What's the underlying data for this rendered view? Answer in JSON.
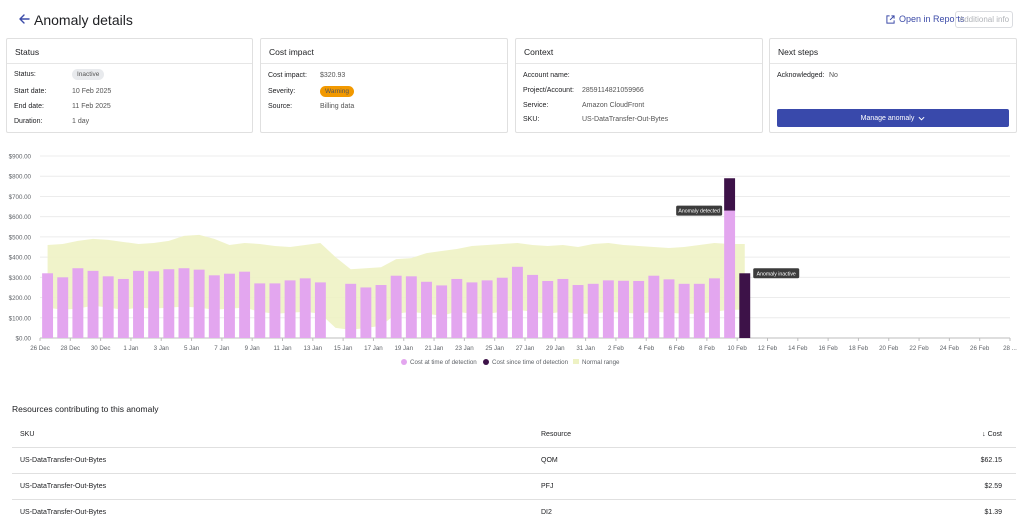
{
  "header": {
    "title": "Anomaly details",
    "open_reports": "Open in Reports",
    "additional_info": "Additional info"
  },
  "status_card": {
    "title": "Status",
    "status_label": "Status:",
    "status_value": "Inactive",
    "start_label": "Start date:",
    "start_value": "10 Feb 2025",
    "end_label": "End date:",
    "end_value": "11 Feb 2025",
    "duration_label": "Duration:",
    "duration_value": "1 day"
  },
  "cost_card": {
    "title": "Cost impact",
    "cost_label": "Cost impact:",
    "cost_value": "$320.93",
    "severity_label": "Severity:",
    "severity_value": "Warning",
    "source_label": "Source:",
    "source_value": "Billing data"
  },
  "context_card": {
    "title": "Context",
    "account_label": "Account name:",
    "account_value": "",
    "project_label": "Project/Account:",
    "project_value": "285911482105996​6",
    "service_label": "Service:",
    "service_value": "Amazon CloudFront",
    "sku_label": "SKU:",
    "sku_value": "US-DataTransfer-Out-Bytes"
  },
  "next_card": {
    "title": "Next steps",
    "ack_label": "Acknowledged:",
    "ack_value": "No",
    "manage_button": "Manage anomaly"
  },
  "chart_data": {
    "type": "bar",
    "y_ticks": [
      "$0.00",
      "$100.00",
      "$200.00",
      "$300.00",
      "$400.00",
      "$500.00",
      "$600.00",
      "$700.00",
      "$800.00",
      "$900.00"
    ],
    "ylim": [
      0,
      900
    ],
    "x_tick_labels": [
      "26 Dec",
      "28 Dec",
      "30 Dec",
      "1 Jan",
      "3 Jan",
      "5 Jan",
      "7 Jan",
      "9 Jan",
      "11 Jan",
      "13 Jan",
      "15 Jan",
      "17 Jan",
      "19 Jan",
      "21 Jan",
      "23 Jan",
      "25 Jan",
      "27 Jan",
      "29 Jan",
      "31 Jan",
      "2 Feb",
      "4 Feb",
      "6 Feb",
      "8 Feb",
      "10 Feb",
      "12 Feb",
      "14 Feb",
      "16 Feb",
      "18 Feb",
      "20 Feb",
      "22 Feb",
      "24 Feb",
      "26 Feb",
      "28 ..."
    ],
    "day_count": 65,
    "detection_values": [
      320,
      300,
      345,
      332,
      305,
      292,
      332,
      330,
      340,
      345,
      338,
      310,
      318,
      328,
      270,
      270,
      285,
      295,
      275,
      null,
      268,
      250,
      262,
      308,
      305,
      278,
      260,
      292,
      275,
      285,
      298,
      352,
      312,
      282,
      292,
      262,
      268,
      285,
      283,
      282,
      308,
      290,
      268,
      268,
      295,
      630,
      0
    ],
    "since_values": [
      0,
      0,
      0,
      0,
      0,
      0,
      0,
      0,
      0,
      0,
      0,
      0,
      0,
      0,
      0,
      0,
      0,
      0,
      0,
      null,
      0,
      0,
      0,
      0,
      0,
      0,
      0,
      0,
      0,
      0,
      0,
      0,
      0,
      0,
      0,
      0,
      0,
      0,
      0,
      0,
      0,
      0,
      0,
      0,
      0,
      160,
      320
    ],
    "normal_upper": [
      460,
      465,
      480,
      490,
      485,
      475,
      465,
      470,
      480,
      505,
      510,
      490,
      460,
      470,
      465,
      455,
      450,
      460,
      470,
      400,
      340,
      345,
      350,
      390,
      395,
      420,
      430,
      440,
      455,
      460,
      465,
      470,
      460,
      455,
      460,
      450,
      465,
      470,
      460,
      455,
      450,
      445,
      450,
      460,
      470,
      465,
      465
    ],
    "normal_lower": [
      150,
      140,
      145,
      160,
      150,
      140,
      150,
      145,
      150,
      155,
      150,
      140,
      145,
      150,
      130,
      120,
      125,
      130,
      120,
      50,
      40,
      50,
      60,
      120,
      130,
      120,
      110,
      130,
      120,
      120,
      130,
      140,
      130,
      120,
      130,
      120,
      120,
      130,
      125,
      120,
      130,
      125,
      120,
      120,
      130,
      140,
      140
    ],
    "annotations": [
      {
        "text": "Anomaly detected",
        "day": 45
      },
      {
        "text": "Anomaly inactive",
        "day": 46
      }
    ],
    "series": [
      {
        "name": "Cost at time of detection",
        "color": "#e3a6ef"
      },
      {
        "name": "Cost since time of detection",
        "color": "#3d1248"
      },
      {
        "name": "Normal range",
        "color": "#eef2c4"
      }
    ],
    "legend_placement": "bottom-center",
    "grid": true
  },
  "resources": {
    "title": "Resources contributing to this anomaly",
    "headers": {
      "sku": "SKU",
      "resource": "Resource",
      "cost": "Cost"
    },
    "rows": [
      {
        "sku": "US-DataTransfer-Out-Bytes",
        "resource": "QOM",
        "cost": "$62.15"
      },
      {
        "sku": "US-DataTransfer-Out-Bytes",
        "resource": "PFJ",
        "cost": "$2.59"
      },
      {
        "sku": "US-DataTransfer-Out-Bytes",
        "resource": "DI2",
        "cost": "$1.39"
      }
    ]
  },
  "colors": {
    "accent": "#3949ab",
    "warning": "#f29900",
    "bar_detection": "#e3a6ef",
    "bar_since": "#3d1248",
    "normal_range": "#eef2c4"
  }
}
